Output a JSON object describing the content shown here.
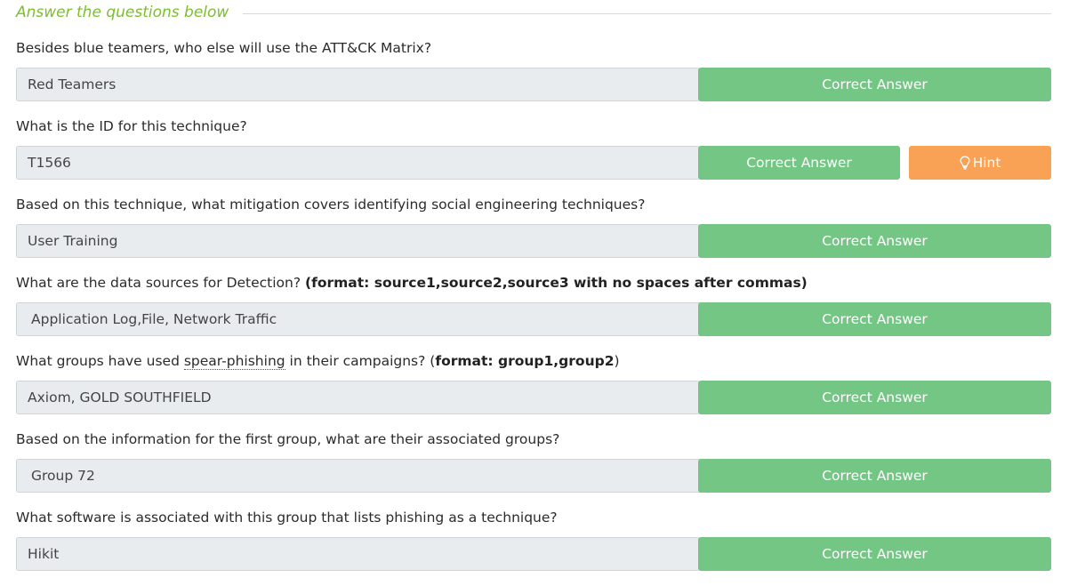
{
  "header": {
    "title": "Answer the questions below"
  },
  "questions": [
    {
      "text": "Besides blue teamers, who else will use the ATT&CK Matrix?",
      "answer": "Red Teamers",
      "button": "Correct Answer"
    },
    {
      "text": "What is the ID for this technique?",
      "answer": "T1566",
      "button": "Correct Answer",
      "hint": "Hint"
    },
    {
      "text": "Based on this technique, what mitigation covers identifying social engineering techniques?",
      "answer": "User Training",
      "button": "Correct Answer"
    },
    {
      "text_pre": "What are the data sources for Detection? ",
      "format": "(format: source1,source2,source3 with no spaces after commas)",
      "answer": "Application Log,File, Network Traffic",
      "button": "Correct Answer"
    },
    {
      "text_pre": "What groups have used ",
      "text_link": "spear-phishing",
      "text_mid": " in their campaigns? (",
      "format": "format: group1,group2",
      "text_post": ")",
      "answer": "Axiom, GOLD SOUTHFIELD",
      "button": "Correct Answer"
    },
    {
      "text": "Based on the information for the first group, what are their associated groups?",
      "answer": "Group 72",
      "button": "Correct Answer"
    },
    {
      "text": "What software is associated with this group that lists phishing as a technique?",
      "answer": "Hikit",
      "button": "Correct Answer"
    }
  ],
  "colors": {
    "accent": "#7cbf2e",
    "success": "#74c684",
    "hint": "#f9a154",
    "input_bg": "#e9ecef"
  },
  "icons": {
    "hint": "lightbulb-icon"
  }
}
